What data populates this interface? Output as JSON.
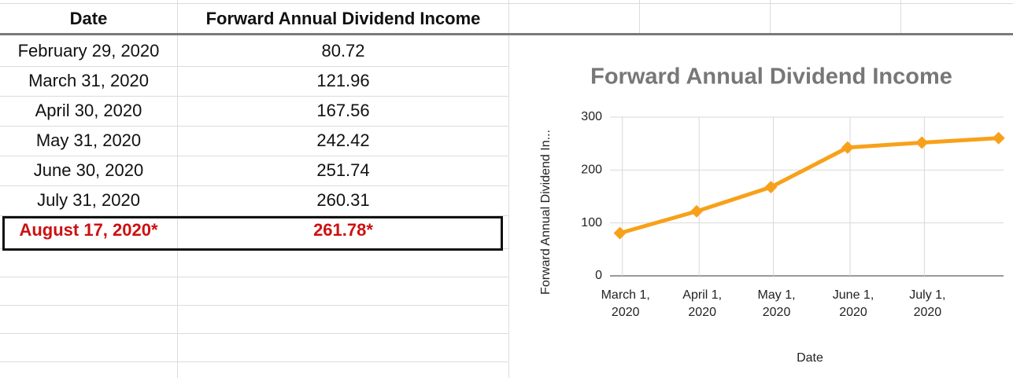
{
  "table": {
    "header": [
      "Date",
      "Forward Annual Dividend Income"
    ],
    "rows": [
      [
        "February 29, 2020",
        "80.72"
      ],
      [
        "March 31, 2020",
        "121.96"
      ],
      [
        "April 30, 2020",
        "167.56"
      ],
      [
        "May 31, 2020",
        "242.42"
      ],
      [
        "June 30, 2020",
        "251.74"
      ],
      [
        "July 31, 2020",
        "260.31"
      ],
      [
        "August 17, 2020*",
        "261.78*"
      ]
    ]
  },
  "chart_data": {
    "type": "line",
    "title": "Forward Annual Dividend Income",
    "x_label": "Date",
    "y_label": "Forward Annual Dividend In...",
    "x": [
      "2020-02-29",
      "2020-03-31",
      "2020-04-30",
      "2020-05-31",
      "2020-06-30",
      "2020-07-31"
    ],
    "series": [
      {
        "name": "Forward Annual Dividend Income",
        "color": "#f7a11a",
        "values": [
          80.72,
          121.96,
          167.56,
          242.42,
          251.74,
          260.31
        ]
      }
    ],
    "xlim": [
      "2020-02-25",
      "2020-08-02"
    ],
    "xticks": [
      {
        "value": "2020-03-01",
        "label": "March 1, 2020"
      },
      {
        "value": "2020-04-01",
        "label": "April 1, 2020"
      },
      {
        "value": "2020-05-01",
        "label": "May 1, 2020"
      },
      {
        "value": "2020-06-01",
        "label": "June 1, 2020"
      },
      {
        "value": "2020-07-01",
        "label": "July 1, 2020"
      }
    ],
    "ylim": [
      0,
      300
    ],
    "yticks": [
      0,
      100,
      200,
      300
    ],
    "grid": true
  }
}
